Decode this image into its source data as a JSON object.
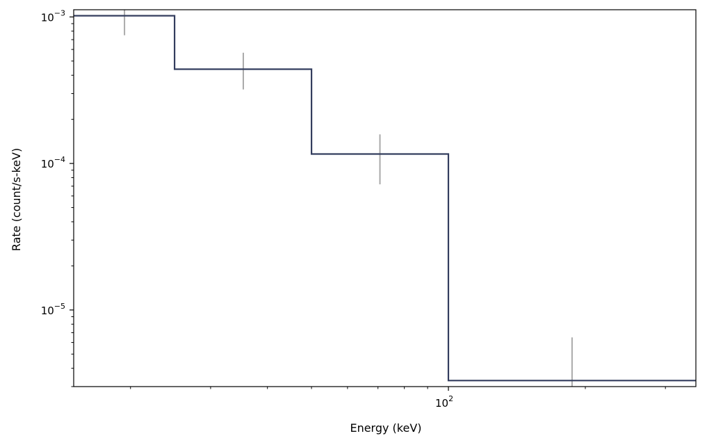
{
  "chart_data": {
    "type": "step",
    "title": "",
    "xlabel": "Energy (keV)",
    "ylabel": "Rate (count/s-keV)",
    "xscale": "log",
    "yscale": "log",
    "xlim": [
      15,
      350
    ],
    "ylim": [
      3e-06,
      0.00112
    ],
    "grid": false,
    "legend": "none",
    "x_ticks": [
      {
        "base": "10",
        "exp": "2",
        "value": 100
      }
    ],
    "y_ticks": [
      {
        "base": "10",
        "exp": "−3",
        "value": 0.001
      },
      {
        "base": "10",
        "exp": "−4",
        "value": 0.0001
      },
      {
        "base": "10",
        "exp": "−5",
        "value": 1e-05
      }
    ],
    "model_steps": [
      {
        "x_lo": 15,
        "x_hi": 25,
        "y": 0.00102
      },
      {
        "x_lo": 25,
        "x_hi": 50,
        "y": 0.00044
      },
      {
        "x_lo": 50,
        "x_hi": 100,
        "y": 0.000116
      },
      {
        "x_lo": 100,
        "x_hi": 350,
        "y": 3.3e-06
      }
    ],
    "data_points": [
      {
        "x": 19.4,
        "y_lo": 0.00075,
        "y_hi": 0.00115
      },
      {
        "x": 35.4,
        "y_lo": 0.00032,
        "y_hi": 0.00057
      },
      {
        "x": 70.7,
        "y_lo": 7.2e-05,
        "y_hi": 0.000158
      },
      {
        "x": 187,
        "y_lo": 3e-06,
        "y_hi": 6.5e-06
      }
    ],
    "colors": {
      "model": "#333d5e",
      "errorbar": "#aaaaaa",
      "axes": "#000000"
    }
  }
}
